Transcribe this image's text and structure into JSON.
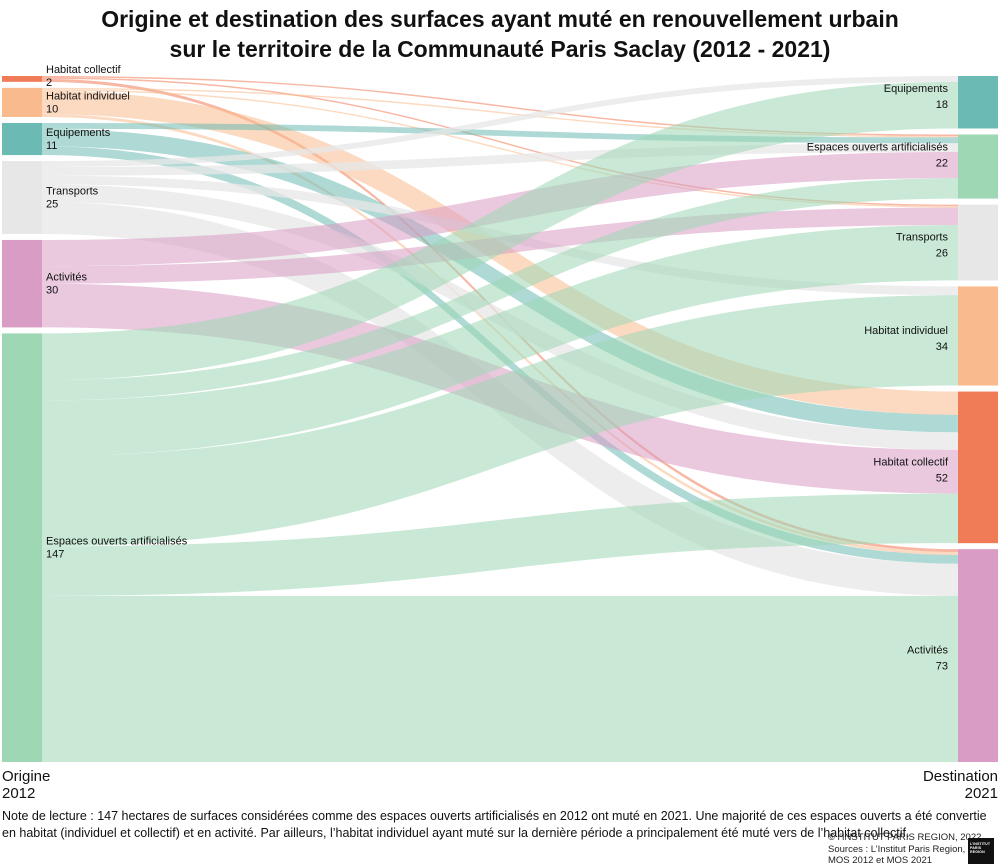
{
  "title_line1": "Origine et destination des surfaces ayant muté en renouvellement urbain",
  "title_line2": "sur le territoire de la Communauté Paris Saclay (2012 - 2021)",
  "axis_left": {
    "line1": "Origine",
    "line2": "2012"
  },
  "axis_right": {
    "line1": "Destination",
    "line2": "2021"
  },
  "note": "Note de lecture : 147 hectares de surfaces considérées comme des espaces ouverts artificialisés en 2012 ont muté en 2021. Une majorité de ces espaces ouverts a été convertie en habitat (individuel et collectif) et en activité. Par ailleurs, l’habitat individuel ayant muté sur la dernière période a principalement été muté vers de l’habitat collectif.",
  "footer": {
    "copyright": "© l’INSTITUT PARIS REGION, 2022",
    "source1": "Sources : L’Institut Paris Region,",
    "source2": "MOS 2012 et MOS 2021"
  },
  "logo_text": [
    "L’INSTITUT",
    "PARIS",
    "REGION"
  ],
  "chart_data": {
    "type": "sankey",
    "colors": {
      "Habitat collectif": "#f07b57",
      "Habitat individuel": "#f9bb8e",
      "Equipements": "#6bbab3",
      "Transports": "#e7e7e7",
      "Activités": "#d99cc4",
      "Espaces ouverts artificialisés": "#9dd7b4"
    },
    "sources": [
      {
        "name": "Habitat collectif",
        "value": 2
      },
      {
        "name": "Habitat individuel",
        "value": 10
      },
      {
        "name": "Equipements",
        "value": 11
      },
      {
        "name": "Transports",
        "value": 25
      },
      {
        "name": "Activités",
        "value": 30
      },
      {
        "name": "Espaces ouverts artificialisés",
        "value": 147
      }
    ],
    "targets": [
      {
        "name": "Equipements",
        "value": 18
      },
      {
        "name": "Espaces ouverts artificialisés",
        "value": 22
      },
      {
        "name": "Transports",
        "value": 26
      },
      {
        "name": "Habitat individuel",
        "value": 34
      },
      {
        "name": "Habitat collectif",
        "value": 52
      },
      {
        "name": "Activités",
        "value": 73
      }
    ],
    "links": [
      {
        "source": "Habitat collectif",
        "target": "Espaces ouverts artificialisés",
        "value": 0.5
      },
      {
        "source": "Habitat collectif",
        "target": "Transports",
        "value": 0.5
      },
      {
        "source": "Habitat collectif",
        "target": "Activités",
        "value": 1
      },
      {
        "source": "Habitat individuel",
        "target": "Espaces ouverts artificialisés",
        "value": 0.5
      },
      {
        "source": "Habitat individuel",
        "target": "Transports",
        "value": 0.5
      },
      {
        "source": "Habitat individuel",
        "target": "Habitat collectif",
        "value": 8
      },
      {
        "source": "Habitat individuel",
        "target": "Activités",
        "value": 1
      },
      {
        "source": "Equipements",
        "target": "Espaces ouverts artificialisés",
        "value": 2
      },
      {
        "source": "Equipements",
        "target": "Habitat collectif",
        "value": 6
      },
      {
        "source": "Equipements",
        "target": "Activités",
        "value": 3
      },
      {
        "source": "Transports",
        "target": "Equipements",
        "value": 2
      },
      {
        "source": "Transports",
        "target": "Espaces ouverts artificialisés",
        "value": 3
      },
      {
        "source": "Transports",
        "target": "Habitat individuel",
        "value": 3
      },
      {
        "source": "Transports",
        "target": "Habitat collectif",
        "value": 6
      },
      {
        "source": "Transports",
        "target": "Activités",
        "value": 11
      },
      {
        "source": "Activités",
        "target": "Espaces ouverts artificialisés",
        "value": 9
      },
      {
        "source": "Activités",
        "target": "Transports",
        "value": 6
      },
      {
        "source": "Activités",
        "target": "Habitat collectif",
        "value": 15
      },
      {
        "source": "Espaces ouverts artificialisés",
        "target": "Equipements",
        "value": 16
      },
      {
        "source": "Espaces ouverts artificialisés",
        "target": "Espaces ouverts artificialisés",
        "value": 7
      },
      {
        "source": "Espaces ouverts artificialisés",
        "target": "Transports",
        "value": 19
      },
      {
        "source": "Espaces ouverts artificialisés",
        "target": "Habitat individuel",
        "value": 31
      },
      {
        "source": "Espaces ouverts artificialisés",
        "target": "Habitat collectif",
        "value": 17
      },
      {
        "source": "Espaces ouverts artificialisés",
        "target": "Activités",
        "value": 57
      }
    ]
  }
}
